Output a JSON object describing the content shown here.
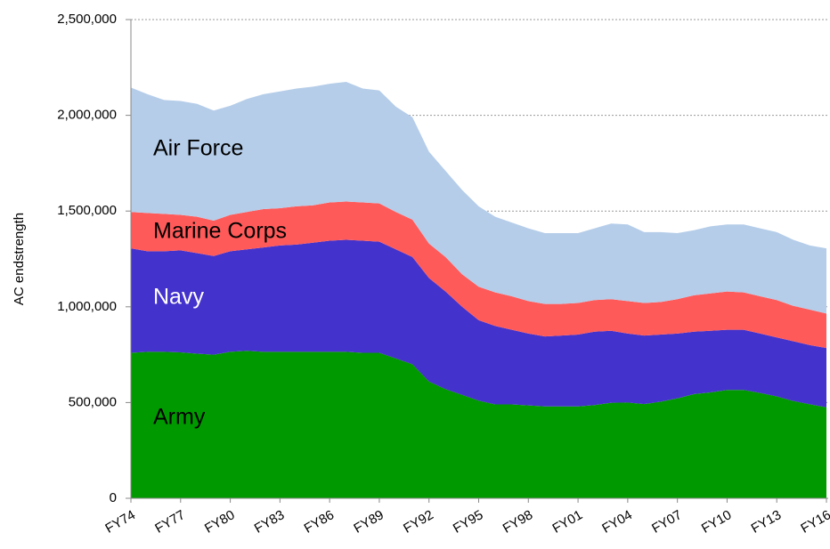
{
  "chart_data": {
    "type": "stacked_area",
    "y_label": "AC endstrength",
    "categories": [
      "FY74",
      null,
      null,
      "FY77",
      null,
      null,
      "FY80",
      null,
      null,
      "FY83",
      null,
      null,
      "FY86",
      null,
      null,
      "FY89",
      null,
      null,
      "FY92",
      null,
      null,
      "FY95",
      null,
      null,
      "FY98",
      null,
      null,
      "FY01",
      null,
      null,
      "FY04",
      null,
      null,
      "FY07",
      null,
      null,
      "FY10",
      null,
      null,
      "FY13",
      null,
      null,
      "FY16"
    ],
    "series": [
      {
        "name": "Army",
        "color": "#009a00",
        "label_color": "#000000",
        "values": [
          760000,
          765000,
          765000,
          762000,
          755000,
          750000,
          765000,
          770000,
          765000,
          765000,
          765000,
          765000,
          765000,
          765000,
          760000,
          760000,
          730000,
          700000,
          610000,
          570000,
          540000,
          510000,
          490000,
          490000,
          485000,
          480000,
          480000,
          480000,
          487000,
          499000,
          500000,
          492000,
          505000,
          522000,
          544000,
          553000,
          566000,
          566000,
          550000,
          532000,
          508000,
          491000,
          475000
        ]
      },
      {
        "name": "Navy",
        "color": "#4432cc",
        "label_color": "#ffffff",
        "values": [
          545000,
          525000,
          525000,
          533000,
          525000,
          515000,
          525000,
          530000,
          545000,
          555000,
          560000,
          570000,
          580000,
          585000,
          585000,
          580000,
          570000,
          560000,
          540000,
          510000,
          460000,
          420000,
          410000,
          390000,
          375000,
          365000,
          370000,
          375000,
          383000,
          376000,
          360000,
          358000,
          350000,
          338000,
          326000,
          322000,
          314000,
          314000,
          310000,
          308000,
          312000,
          309000,
          310000
        ]
      },
      {
        "name": "Marine Corps",
        "color": "#ff5a5a",
        "label_color": "#000000",
        "values": [
          190000,
          200000,
          195000,
          185000,
          190000,
          185000,
          190000,
          195000,
          200000,
          195000,
          200000,
          195000,
          200000,
          200000,
          200000,
          200000,
          195000,
          195000,
          180000,
          180000,
          170000,
          175000,
          175000,
          175000,
          170000,
          170000,
          165000,
          165000,
          165000,
          165000,
          170000,
          170000,
          170000,
          180000,
          190000,
          195000,
          200000,
          195000,
          195000,
          195000,
          185000,
          185000,
          180000
        ]
      },
      {
        "name": "Air Force",
        "color": "#b5cde9",
        "label_color": "#000000",
        "values": [
          650000,
          620000,
          595000,
          595000,
          590000,
          575000,
          570000,
          590000,
          600000,
          610000,
          615000,
          620000,
          620000,
          625000,
          595000,
          590000,
          550000,
          535000,
          480000,
          450000,
          440000,
          420000,
          395000,
          385000,
          380000,
          370000,
          370000,
          365000,
          375000,
          395000,
          400000,
          370000,
          365000,
          345000,
          340000,
          350000,
          350000,
          355000,
          355000,
          355000,
          345000,
          335000,
          340000
        ]
      }
    ],
    "ylim": [
      0,
      2500000
    ],
    "yticks": [
      0,
      {
        "value": 500000,
        "label": "500,000"
      },
      {
        "value": 1000000,
        "label": "1,000,000"
      },
      {
        "value": 1500000,
        "label": "1,500,000"
      },
      {
        "value": 2000000,
        "label": "2,000,000"
      },
      {
        "value": 2500000,
        "label": "2,500,000"
      }
    ],
    "grid": true
  }
}
